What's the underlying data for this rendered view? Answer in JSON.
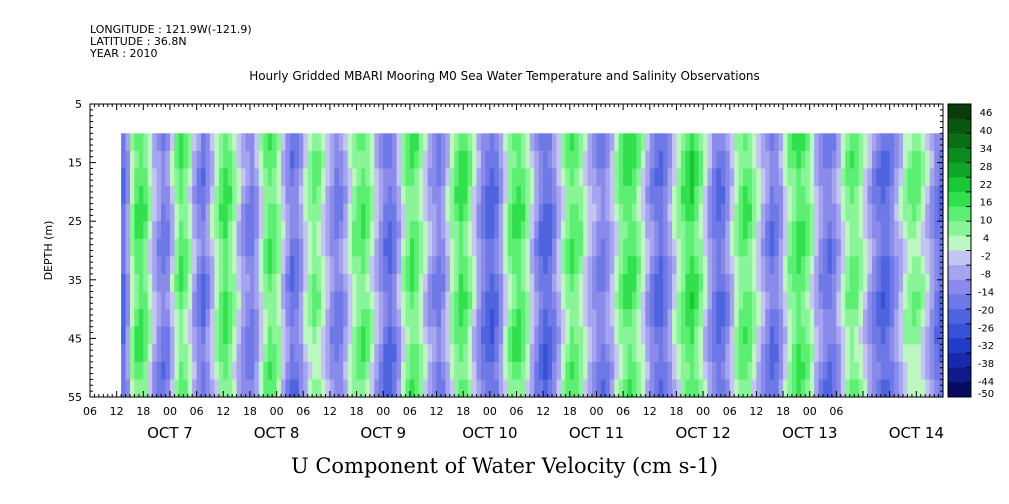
{
  "header": {
    "longitude": "LONGITUDE : 121.9W(-121.9)",
    "latitude": "LATITUDE : 36.8N",
    "year": "YEAR : 2010",
    "title": "Hourly Gridded MBARI Mooring M0 Sea Water Temperature and Salinity Observations"
  },
  "chart_data": {
    "type": "heatmap",
    "title": "Hourly Gridded MBARI Mooring M0 Sea Water Temperature and Salinity Observations",
    "xlabel": "",
    "ylabel": "DEPTH (m)",
    "bottom_title": "U Component of Water Velocity (cm s-1)",
    "y_axis": {
      "range": [
        5,
        55
      ],
      "inverted": true,
      "ticks": [
        5,
        15,
        25,
        35,
        45,
        55
      ],
      "data_depth_range": [
        10,
        55
      ]
    },
    "x_axis": {
      "hour_ticks": [
        "06",
        "12",
        "18",
        "00",
        "06",
        "12",
        "18",
        "00",
        "06",
        "12",
        "18",
        "00",
        "06",
        "12",
        "18",
        "00",
        "06",
        "12",
        "18",
        "00",
        "06",
        "12",
        "18",
        "00",
        "06",
        "12",
        "18",
        "00",
        "06"
      ],
      "day_labels": [
        "OCT  7",
        "OCT  8",
        "OCT  9",
        "OCT 10",
        "OCT 11",
        "OCT 12",
        "OCT 13",
        "OCT 14"
      ],
      "start": "2010-10-06 06:00",
      "end": "2010-10-14 06:00",
      "data_start": "2010-10-06 13:00"
    },
    "colorbar": {
      "labels": [
        "46",
        "40",
        "34",
        "28",
        "22",
        "16",
        "10",
        "4",
        "-2",
        "-8",
        "-14",
        "-20",
        "-26",
        "-32",
        "-38",
        "-44",
        "-50"
      ],
      "colors": [
        "#0a3c0a",
        "#0a550f",
        "#0b6e16",
        "#0d8a1e",
        "#10a528",
        "#19c834",
        "#32e04e",
        "#5cef74",
        "#8af598",
        "#bcf7c2",
        "#c5c5f2",
        "#a4a4ef",
        "#8a8aeb",
        "#6e78e6",
        "#4f64df",
        "#3650d6",
        "#233cc8",
        "#1a28aa",
        "#101a8a",
        "#080c60"
      ]
    },
    "u_velocity_profile_by_hour": [
      -18,
      -8,
      6,
      14,
      16,
      12,
      4,
      -4,
      -10,
      -14,
      -12,
      -2,
      8,
      14,
      10,
      4,
      -6,
      -12,
      -16,
      -10,
      -2,
      6,
      12,
      16,
      12,
      6,
      -2,
      -8,
      -12,
      -14,
      -8,
      2,
      10,
      14,
      12,
      6,
      -2,
      -10,
      -16,
      -14,
      -8,
      0,
      6,
      10,
      8,
      2,
      -4,
      -10,
      -14,
      -12,
      -6,
      2,
      8,
      12,
      14,
      10,
      4,
      -4,
      -10,
      -16,
      -18,
      -14,
      -6,
      4,
      10,
      14,
      12,
      6,
      0,
      -6,
      -10,
      -14,
      -10,
      -2,
      6,
      12,
      16,
      14,
      8,
      0,
      -8,
      -14,
      -18,
      -20,
      -16,
      -8,
      2,
      10,
      14,
      16,
      12,
      6,
      -2,
      -10,
      -16,
      -20,
      -18,
      -12,
      -4,
      4,
      10,
      14,
      12,
      8,
      2,
      -4,
      -8,
      -12,
      -14,
      -10,
      -4,
      4,
      10,
      14,
      16,
      14,
      8,
      2,
      -6,
      -12,
      -16,
      -18,
      -14,
      -8,
      0,
      6,
      12,
      16,
      18,
      14,
      8,
      0,
      -8,
      -14,
      -18,
      -16,
      -10,
      -2,
      6,
      12,
      14,
      12,
      6,
      0,
      -6,
      -12,
      -16,
      -14,
      -8,
      0,
      8,
      12,
      16,
      14,
      10,
      4,
      -4,
      -10,
      -14,
      -16,
      -12,
      -6,
      2,
      8,
      12,
      10,
      6,
      0,
      -6,
      -12,
      -16,
      -20,
      -18,
      -14,
      -8,
      -2,
      4,
      8,
      10,
      8,
      4,
      -2,
      -8,
      -14,
      -18,
      -20,
      -22
    ]
  }
}
